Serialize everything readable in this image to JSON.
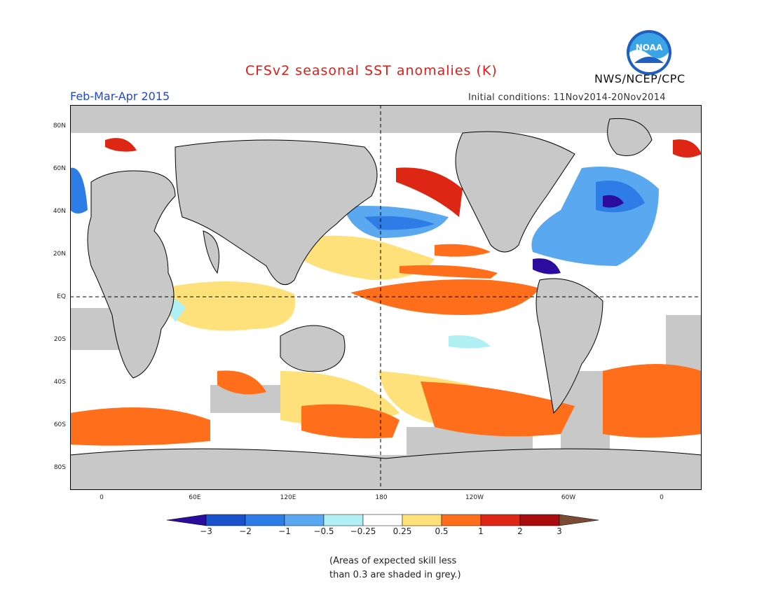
{
  "header": {
    "title": "CFSv2 seasonal SST anomalies (K)",
    "period": "Feb-Mar-Apr 2015",
    "initial_conditions": "Initial conditions: 11Nov2014-20Nov2014",
    "agency": "NWS/NCEP/CPC",
    "logo_text": "NOAA"
  },
  "axes": {
    "lat_labels": [
      "80N",
      "60N",
      "40N",
      "20N",
      "EQ",
      "20S",
      "40S",
      "60S",
      "80S"
    ],
    "lon_labels": [
      "0",
      "60E",
      "120E",
      "180",
      "120W",
      "60W",
      "0"
    ]
  },
  "colorbar": {
    "labels": [
      "-3",
      "-2",
      "-1",
      "-0.5",
      "-0.25",
      "0.25",
      "0.5",
      "1",
      "2",
      "3"
    ],
    "colors": [
      "#2b0c9f",
      "#1a52cc",
      "#2e7de6",
      "#5aa9f0",
      "#b0f0f4",
      "#ffffff",
      "#fee17a",
      "#ff6e1a",
      "#dd2613",
      "#a80c0c",
      "#7a4a35"
    ]
  },
  "map_colors": {
    "land": "#c8c8c8",
    "skill_mask": "#c8c8c8",
    "coast": "#000000"
  },
  "note": {
    "line1": "(Areas of expected skill less",
    "line2": "than 0.3 are shaded in grey.)"
  }
}
